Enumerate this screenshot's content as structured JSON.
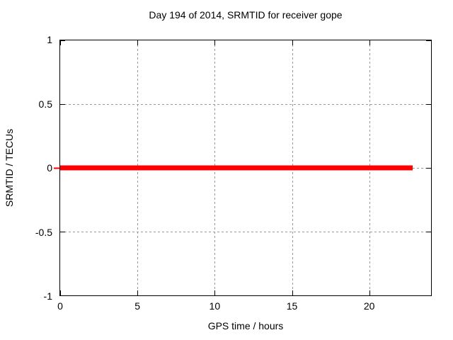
{
  "chart_data": {
    "type": "line",
    "title": "Day 194 of 2014, SRMTID for receiver gope",
    "xlabel": "GPS time / hours",
    "ylabel": "SRMTID / TECUs",
    "xlim": [
      0,
      24
    ],
    "ylim": [
      -1,
      1
    ],
    "xticks": [
      0,
      5,
      10,
      15,
      20
    ],
    "yticks": [
      1,
      0.5,
      0,
      -0.5,
      -1
    ],
    "grid": true,
    "legend": false,
    "series": [
      {
        "name": "SRMTID",
        "color": "#ff0000",
        "x": [
          0,
          22.8
        ],
        "y": [
          0,
          0
        ],
        "description": "Constant zero SRMTID value from 0 to approximately 22.8 GPS hours"
      }
    ],
    "colors": {
      "grid": "#999999",
      "border": "#000000",
      "text": "#000000",
      "background": "#ffffff"
    }
  }
}
